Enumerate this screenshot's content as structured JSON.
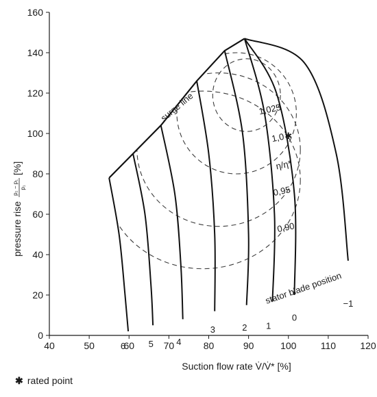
{
  "chart_data": {
    "type": "line",
    "xlabel": "Suction flow rate V̇/V̇* [%]",
    "ylabel_prefix": "pressure rise",
    "ylabel_numerator": "p₂ − p₁",
    "ylabel_denominator": "p₁",
    "ylabel_unit": "[%]",
    "xlim": [
      40,
      120
    ],
    "ylim": [
      0,
      160
    ],
    "x_ticks": [
      "40",
      "50",
      "60",
      "70",
      "80",
      "90",
      "100",
      "110",
      "120"
    ],
    "y_ticks": [
      "0",
      "20",
      "40",
      "60",
      "80",
      "100",
      "120",
      "140",
      "160"
    ],
    "grid": false,
    "surge_line": {
      "label": "surge line",
      "x": [
        55,
        61,
        68,
        77,
        84,
        89
      ],
      "y": [
        78,
        90,
        104,
        126,
        141,
        147
      ]
    },
    "stator_blade_positions": [
      {
        "label": "6",
        "x": [
          55,
          57.5,
          59,
          59.8
        ],
        "y": [
          78,
          50,
          20,
          2
        ]
      },
      {
        "label": "5",
        "x": [
          61,
          64,
          65.5,
          66
        ],
        "y": [
          90,
          60,
          25,
          5
        ]
      },
      {
        "label": "4",
        "x": [
          68,
          71.5,
          73,
          73.5
        ],
        "y": [
          104,
          70,
          35,
          8
        ]
      },
      {
        "label": "3",
        "x": [
          77,
          80,
          81.5,
          81.5
        ],
        "y": [
          126,
          90,
          50,
          12
        ]
      },
      {
        "label": "2",
        "x": [
          84,
          88.5,
          90,
          89.5
        ],
        "y": [
          141,
          100,
          50,
          15
        ]
      },
      {
        "label": "1",
        "x": [
          89,
          94,
          96.5,
          96
        ],
        "y": [
          147,
          110,
          60,
          17
        ]
      },
      {
        "label": "0",
        "x": [
          89,
          97,
          101.5,
          101.5
        ],
        "y": [
          147,
          120,
          70,
          20
        ]
      },
      {
        "label": "−1",
        "x": [
          89,
          104,
          112,
          115
        ],
        "y": [
          147,
          135,
          90,
          37
        ]
      }
    ],
    "efficiency_contours": [
      {
        "label": "1,025",
        "cx": 89.5,
        "cy": 119,
        "rx": 8.5,
        "ry": 18
      },
      {
        "label": "1,0",
        "cx": 87,
        "cy": 110,
        "rx": 15,
        "ry": 30
      },
      {
        "label": "0,95",
        "cx": 82.5,
        "cy": 92,
        "rx": 20.5,
        "ry": 38
      },
      {
        "label": "0,90",
        "cx": 78.5,
        "cy": 77,
        "rx": 24.5,
        "ry": 44
      }
    ],
    "efficiency_label": "η/η*",
    "rated_point": {
      "x": 100,
      "y": 100
    },
    "stator_blade_label": "stator blade position"
  },
  "footnote": {
    "symbol": "✱",
    "text": "rated point"
  }
}
